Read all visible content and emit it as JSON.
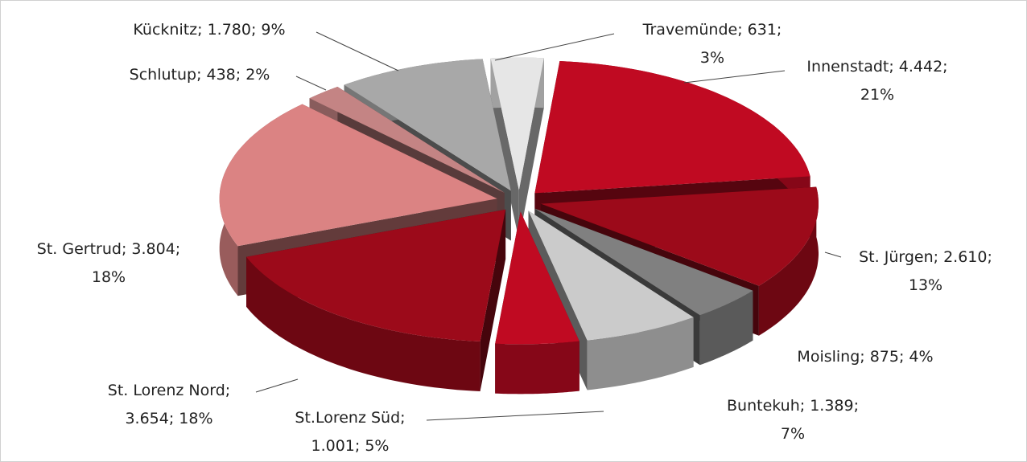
{
  "chart_data": {
    "type": "pie3d",
    "values": [
      4442,
      2610,
      875,
      1389,
      1001,
      3654,
      3804,
      438,
      1780,
      631
    ],
    "value_labels": [
      "Innenstadt; 4.442;\n21%",
      "St. Jürgen; 2.610;\n13%",
      "Moisling; 875; 4%",
      "Buntekuh; 1.389;\n7%",
      "St.Lorenz Süd;\n1.001; 5%",
      "St. Lorenz Nord;\n3.654; 18%",
      "St. Gertrud; 3.804;\n18%",
      "Schlutup; 438; 2%",
      "Kücknitz; 1.780; 9%",
      "Travemünde; 631;\n3%"
    ],
    "colors": [
      "#c00a22",
      "#9c0a1a",
      "#808080",
      "#cbcbcb",
      "#c00a22",
      "#9c0a1a",
      "#db8383",
      "#c48484",
      "#a8a8a8",
      "#e6e6e6"
    ]
  }
}
